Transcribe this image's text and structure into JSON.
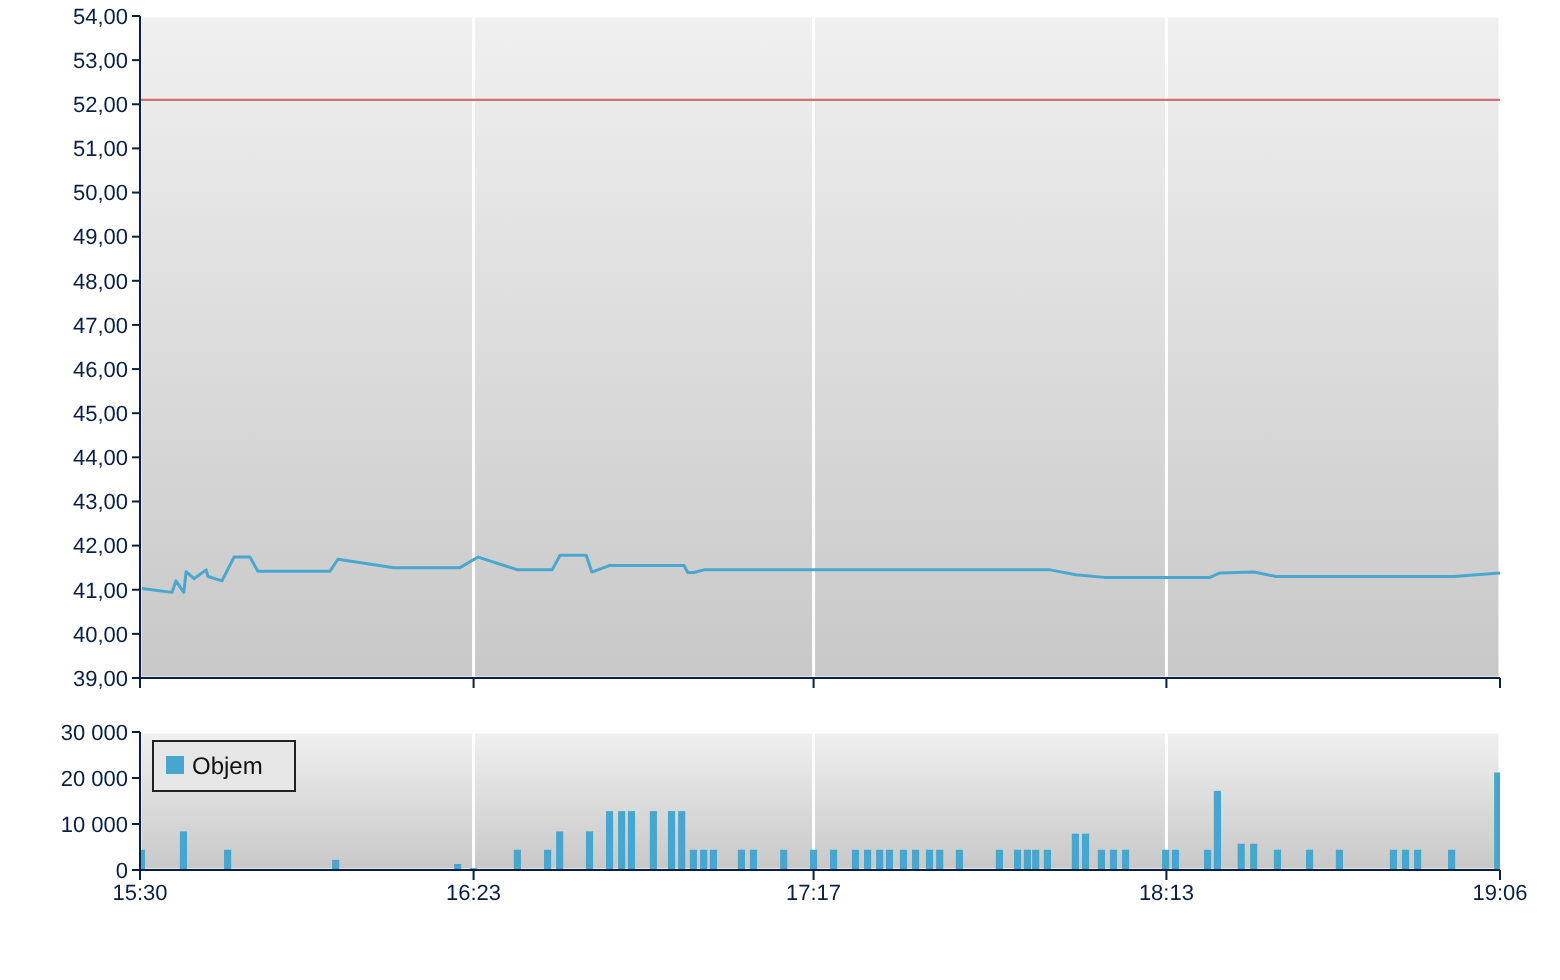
{
  "chart_data": [
    {
      "type": "line",
      "xlim": [
        15.5,
        19.1
      ],
      "xticks": [
        {
          "value": 15.5,
          "label": null
        },
        {
          "value": 16.383,
          "label": null
        },
        {
          "value": 17.283,
          "label": null
        },
        {
          "value": 18.217,
          "label": null
        },
        {
          "value": 19.1,
          "label": null
        }
      ],
      "tick_labels": "y",
      "ylim": [
        39,
        54
      ],
      "yticks": [
        {
          "value": 39,
          "label": "39,00"
        },
        {
          "value": 40,
          "label": "40,00"
        },
        {
          "value": 41,
          "label": "41,00"
        },
        {
          "value": 42,
          "label": "42,00"
        },
        {
          "value": 43,
          "label": "43,00"
        },
        {
          "value": 44,
          "label": "44,00"
        },
        {
          "value": 45,
          "label": "45,00"
        },
        {
          "value": 46,
          "label": "46,00"
        },
        {
          "value": 47,
          "label": "47,00"
        },
        {
          "value": 48,
          "label": "48,00"
        },
        {
          "value": 49,
          "label": "49,00"
        },
        {
          "value": 50,
          "label": "50,00"
        },
        {
          "value": 51,
          "label": "51,00"
        },
        {
          "value": 52,
          "label": "52,00"
        },
        {
          "value": 53,
          "label": "53,00"
        },
        {
          "value": 54,
          "label": "54,00"
        }
      ],
      "grid": true,
      "marker": "none",
      "ref_lines": [
        {
          "axis": "y",
          "value": 52.1,
          "color": "#d07070"
        }
      ],
      "series": [
        {
          "color": "#4aa8d0",
          "x": [
            15.505,
            15.585,
            15.595,
            15.616,
            15.622,
            15.643,
            15.675,
            15.68,
            15.717,
            15.749,
            15.791,
            15.812,
            16.003,
            16.024,
            16.172,
            16.347,
            16.395,
            16.5,
            16.591,
            16.612,
            16.681,
            16.696,
            16.744,
            16.94,
            16.95,
            16.966,
            16.993,
            17.909,
            17.977,
            18.052,
            18.332,
            18.359,
            18.449,
            18.507,
            18.978,
            19.1
          ],
          "values": [
            41.03,
            40.94,
            41.2,
            40.94,
            41.41,
            41.25,
            41.45,
            41.3,
            41.2,
            41.74,
            41.74,
            41.42,
            41.42,
            41.69,
            41.5,
            41.5,
            41.74,
            41.45,
            41.45,
            41.78,
            41.78,
            41.4,
            41.55,
            41.55,
            41.39,
            41.39,
            41.45,
            41.45,
            41.34,
            41.28,
            41.28,
            41.38,
            41.4,
            41.3,
            41.3,
            41.38
          ]
        }
      ]
    },
    {
      "type": "bar",
      "xlim": [
        15.5,
        19.1
      ],
      "xticks": [
        {
          "value": 15.5,
          "label": "15:30"
        },
        {
          "value": 16.383,
          "label": "16:23"
        },
        {
          "value": 17.283,
          "label": "17:17"
        },
        {
          "value": 18.217,
          "label": "18:13"
        },
        {
          "value": 19.1,
          "label": "19:06"
        }
      ],
      "ylim": [
        0,
        30000
      ],
      "yticks": [
        {
          "value": 0,
          "label": "0"
        },
        {
          "value": 10000,
          "label": "10 000"
        },
        {
          "value": 20000,
          "label": "20 000"
        },
        {
          "value": 30000,
          "label": "30 000"
        }
      ],
      "grid": true,
      "legend": "top left",
      "series": [
        {
          "name": "Objem",
          "color": "#46a6d0",
          "x": [
            15.505,
            15.585,
            15.616,
            15.643,
            15.696,
            15.733,
            15.998,
            16.019,
            16.342,
            16.384,
            16.5,
            16.58,
            16.612,
            16.691,
            16.744,
            16.776,
            16.802,
            16.86,
            16.908,
            16.935,
            16.966,
            16.993,
            17.019,
            17.093,
            17.125,
            17.205,
            17.284,
            17.337,
            17.395,
            17.427,
            17.459,
            17.485,
            17.522,
            17.554,
            17.591,
            17.618,
            17.67,
            17.776,
            17.824,
            17.85,
            17.872,
            17.903,
            17.977,
            18.004,
            18.046,
            18.078,
            18.11,
            18.216,
            18.242,
            18.327,
            18.353,
            18.416,
            18.449,
            18.512,
            18.597,
            18.676,
            18.819,
            18.851,
            18.883,
            18.973,
            19.095
          ],
          "values": [
            4400,
            null,
            8400,
            null,
            null,
            4400,
            null,
            2200,
            1300,
            400,
            4400,
            4400,
            8400,
            8400,
            12800,
            12800,
            12800,
            12800,
            12800,
            12800,
            4400,
            4400,
            4400,
            4400,
            4400,
            4400,
            4400,
            4400,
            4400,
            4400,
            4400,
            4400,
            4400,
            4400,
            4400,
            4400,
            4400,
            4400,
            4400,
            4400,
            4400,
            4400,
            7900,
            7900,
            4400,
            4400,
            4400,
            4400,
            4400,
            4400,
            17200,
            5700,
            5700,
            4400,
            4400,
            4400,
            4400,
            4400,
            4400,
            4400,
            21200
          ]
        }
      ]
    }
  ]
}
